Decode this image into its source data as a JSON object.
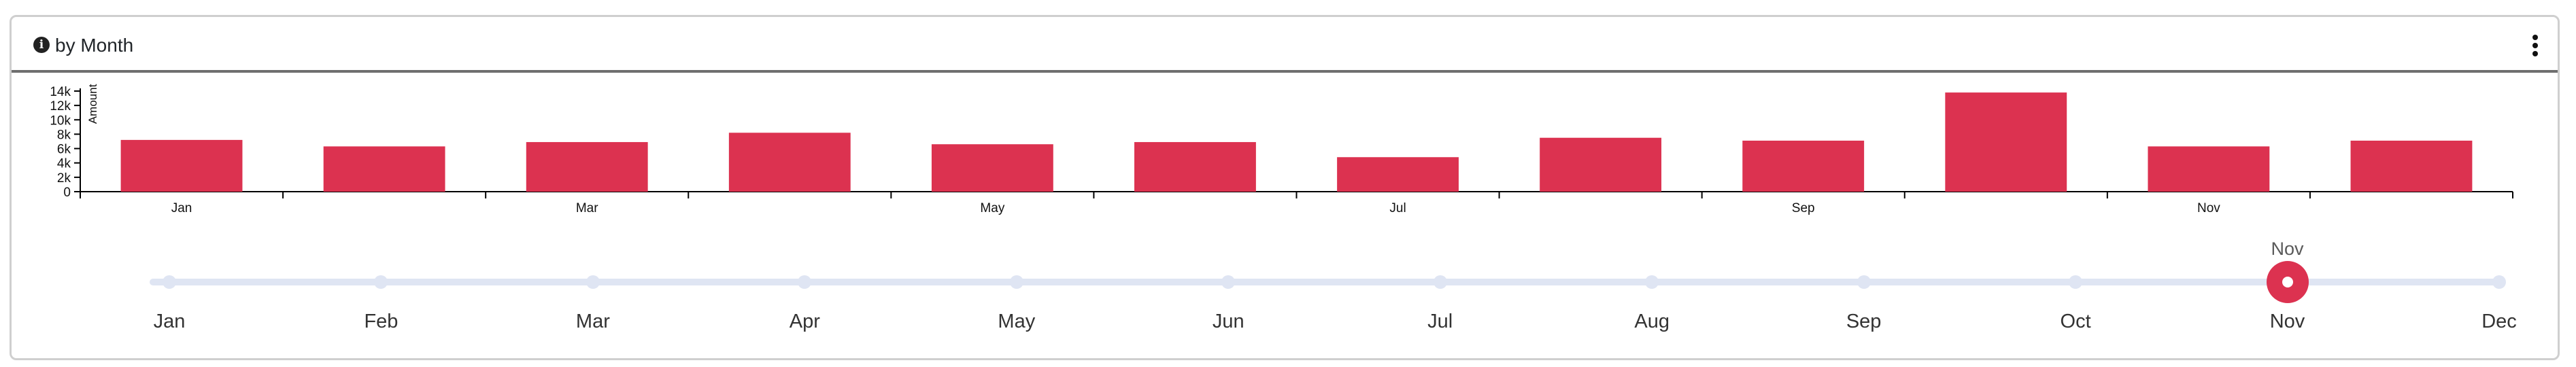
{
  "header": {
    "title": "by Month",
    "info_icon": "info-circle-icon",
    "menu_icon": "kebab-menu-icon"
  },
  "colors": {
    "bar": "#dc3250",
    "slider_track": "#dfe5f3",
    "slider_handle": "#dc3250"
  },
  "chart_data": {
    "type": "bar",
    "categories": [
      "Jan",
      "Feb",
      "Mar",
      "Apr",
      "May",
      "Jun",
      "Jul",
      "Aug",
      "Sep",
      "Oct",
      "Nov",
      "Dec"
    ],
    "tick_labels": [
      "Jan",
      "",
      "Mar",
      "",
      "May",
      "",
      "Jul",
      "",
      "Sep",
      "",
      "Nov",
      ""
    ],
    "values": [
      7200,
      6300,
      6900,
      8200,
      6600,
      6900,
      4800,
      7500,
      7100,
      13800,
      6300,
      7100
    ],
    "ylabel": "Amount",
    "ylim": [
      0,
      14000
    ],
    "yticks": [
      "0",
      "2k",
      "4k",
      "6k",
      "8k",
      "10k",
      "12k",
      "14k"
    ],
    "grid": false,
    "legend": "none"
  },
  "timeline": {
    "months": [
      "Jan",
      "Feb",
      "Mar",
      "Apr",
      "May",
      "Jun",
      "Jul",
      "Aug",
      "Sep",
      "Oct",
      "Nov",
      "Dec"
    ],
    "selected_index": 10,
    "selected_label": "Nov"
  }
}
